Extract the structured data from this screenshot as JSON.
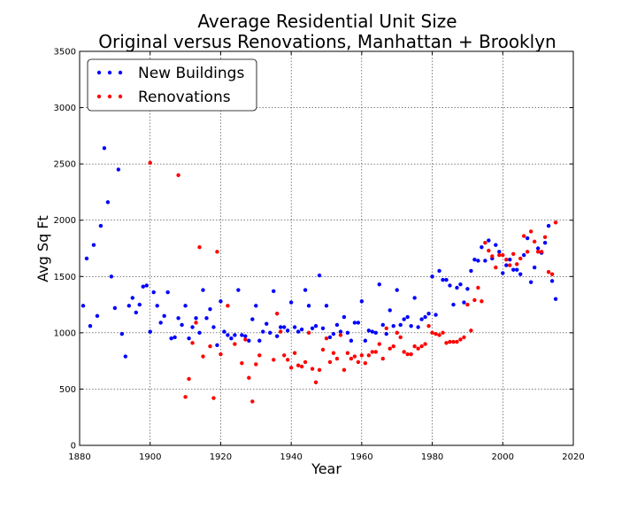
{
  "chart_data": {
    "type": "scatter",
    "title": "Average Residential Unit Size",
    "subtitle": "Original versus Renovations, Manhattan + Brooklyn",
    "xlabel": "Year",
    "ylabel": "Avg Sq Ft",
    "xlim": [
      1880,
      2020
    ],
    "ylim": [
      0,
      3500
    ],
    "xticks": [
      "1880",
      "1900",
      "1920",
      "1940",
      "1960",
      "1980",
      "2000",
      "2020"
    ],
    "yticks": [
      "0",
      "500",
      "1000",
      "1500",
      "2000",
      "2500",
      "3000",
      "3500"
    ],
    "grid": true,
    "legend_position": "top-left",
    "series": [
      {
        "name": "New Buildings",
        "color": "#0000ff",
        "points": [
          [
            1881,
            1240
          ],
          [
            1882,
            1660
          ],
          [
            1883,
            1060
          ],
          [
            1884,
            1780
          ],
          [
            1885,
            1150
          ],
          [
            1886,
            1950
          ],
          [
            1887,
            2640
          ],
          [
            1888,
            2160
          ],
          [
            1889,
            1500
          ],
          [
            1890,
            1220
          ],
          [
            1891,
            2450
          ],
          [
            1892,
            990
          ],
          [
            1893,
            790
          ],
          [
            1894,
            1240
          ],
          [
            1895,
            1310
          ],
          [
            1896,
            1180
          ],
          [
            1897,
            1250
          ],
          [
            1898,
            1410
          ],
          [
            1899,
            1420
          ],
          [
            1900,
            1010
          ],
          [
            1901,
            1360
          ],
          [
            1902,
            1240
          ],
          [
            1903,
            1090
          ],
          [
            1904,
            1150
          ],
          [
            1905,
            1360
          ],
          [
            1906,
            950
          ],
          [
            1907,
            960
          ],
          [
            1908,
            1130
          ],
          [
            1909,
            1070
          ],
          [
            1910,
            1240
          ],
          [
            1911,
            950
          ],
          [
            1912,
            1050
          ],
          [
            1913,
            1130
          ],
          [
            1914,
            1000
          ],
          [
            1915,
            1380
          ],
          [
            1916,
            1130
          ],
          [
            1917,
            1210
          ],
          [
            1918,
            1050
          ],
          [
            1919,
            890
          ],
          [
            1920,
            1280
          ],
          [
            1921,
            1010
          ],
          [
            1922,
            980
          ],
          [
            1923,
            950
          ],
          [
            1924,
            980
          ],
          [
            1925,
            1380
          ],
          [
            1926,
            980
          ],
          [
            1927,
            970
          ],
          [
            1928,
            930
          ],
          [
            1929,
            1120
          ],
          [
            1930,
            1240
          ],
          [
            1931,
            930
          ],
          [
            1932,
            1010
          ],
          [
            1933,
            1080
          ],
          [
            1934,
            1000
          ],
          [
            1935,
            1370
          ],
          [
            1936,
            970
          ],
          [
            1937,
            1050
          ],
          [
            1938,
            1050
          ],
          [
            1939,
            1020
          ],
          [
            1940,
            1270
          ],
          [
            1941,
            1050
          ],
          [
            1942,
            1010
          ],
          [
            1943,
            1030
          ],
          [
            1944,
            1380
          ],
          [
            1945,
            1240
          ],
          [
            1946,
            1040
          ],
          [
            1947,
            1060
          ],
          [
            1948,
            1510
          ],
          [
            1949,
            1040
          ],
          [
            1950,
            1240
          ],
          [
            1951,
            960
          ],
          [
            1952,
            990
          ],
          [
            1953,
            1070
          ],
          [
            1954,
            1010
          ],
          [
            1955,
            1140
          ],
          [
            1956,
            1000
          ],
          [
            1957,
            930
          ],
          [
            1958,
            1090
          ],
          [
            1959,
            1090
          ],
          [
            1960,
            1280
          ],
          [
            1961,
            930
          ],
          [
            1962,
            1020
          ],
          [
            1963,
            1010
          ],
          [
            1964,
            1000
          ],
          [
            1965,
            1430
          ],
          [
            1966,
            1070
          ],
          [
            1967,
            990
          ],
          [
            1968,
            1200
          ],
          [
            1969,
            1060
          ],
          [
            1970,
            1380
          ],
          [
            1971,
            1070
          ],
          [
            1972,
            1120
          ],
          [
            1973,
            1140
          ],
          [
            1974,
            1060
          ],
          [
            1975,
            1310
          ],
          [
            1976,
            1050
          ],
          [
            1977,
            1120
          ],
          [
            1978,
            1140
          ],
          [
            1979,
            1170
          ],
          [
            1980,
            1500
          ],
          [
            1981,
            1160
          ],
          [
            1982,
            1550
          ],
          [
            1983,
            1470
          ],
          [
            1984,
            1470
          ],
          [
            1985,
            1420
          ],
          [
            1986,
            1250
          ],
          [
            1987,
            1400
          ],
          [
            1988,
            1430
          ],
          [
            1989,
            1270
          ],
          [
            1990,
            1390
          ],
          [
            1991,
            1550
          ],
          [
            1992,
            1650
          ],
          [
            1993,
            1640
          ],
          [
            1994,
            1760
          ],
          [
            1995,
            1640
          ],
          [
            1996,
            1820
          ],
          [
            1997,
            1660
          ],
          [
            1998,
            1780
          ],
          [
            1999,
            1720
          ],
          [
            2000,
            1530
          ],
          [
            2001,
            1600
          ],
          [
            2002,
            1650
          ],
          [
            2003,
            1560
          ],
          [
            2004,
            1560
          ],
          [
            2005,
            1520
          ],
          [
            2006,
            1690
          ],
          [
            2007,
            1840
          ],
          [
            2008,
            1450
          ],
          [
            2009,
            1580
          ],
          [
            2010,
            1750
          ],
          [
            2011,
            1710
          ],
          [
            2012,
            1800
          ],
          [
            2013,
            1950
          ],
          [
            2014,
            1460
          ],
          [
            2015,
            1300
          ]
        ]
      },
      {
        "name": "Renovations",
        "color": "#ff0000",
        "points": [
          [
            1900,
            2510
          ],
          [
            1908,
            2400
          ],
          [
            1910,
            430
          ],
          [
            1911,
            590
          ],
          [
            1912,
            910
          ],
          [
            1913,
            1090
          ],
          [
            1914,
            1760
          ],
          [
            1915,
            790
          ],
          [
            1917,
            880
          ],
          [
            1918,
            420
          ],
          [
            1919,
            1720
          ],
          [
            1920,
            810
          ],
          [
            1922,
            1240
          ],
          [
            1924,
            900
          ],
          [
            1926,
            730
          ],
          [
            1927,
            940
          ],
          [
            1928,
            600
          ],
          [
            1929,
            390
          ],
          [
            1930,
            720
          ],
          [
            1931,
            800
          ],
          [
            1935,
            760
          ],
          [
            1936,
            1170
          ],
          [
            1937,
            1010
          ],
          [
            1938,
            800
          ],
          [
            1939,
            760
          ],
          [
            1940,
            690
          ],
          [
            1941,
            820
          ],
          [
            1942,
            710
          ],
          [
            1943,
            700
          ],
          [
            1944,
            740
          ],
          [
            1945,
            1000
          ],
          [
            1946,
            680
          ],
          [
            1947,
            560
          ],
          [
            1948,
            670
          ],
          [
            1949,
            850
          ],
          [
            1950,
            950
          ],
          [
            1951,
            740
          ],
          [
            1952,
            820
          ],
          [
            1953,
            770
          ],
          [
            1954,
            980
          ],
          [
            1955,
            670
          ],
          [
            1956,
            820
          ],
          [
            1957,
            770
          ],
          [
            1958,
            790
          ],
          [
            1959,
            740
          ],
          [
            1960,
            800
          ],
          [
            1961,
            730
          ],
          [
            1962,
            800
          ],
          [
            1963,
            830
          ],
          [
            1964,
            830
          ],
          [
            1965,
            900
          ],
          [
            1966,
            770
          ],
          [
            1967,
            1040
          ],
          [
            1968,
            860
          ],
          [
            1969,
            880
          ],
          [
            1970,
            1000
          ],
          [
            1971,
            960
          ],
          [
            1972,
            830
          ],
          [
            1973,
            810
          ],
          [
            1974,
            810
          ],
          [
            1975,
            880
          ],
          [
            1976,
            860
          ],
          [
            1977,
            880
          ],
          [
            1978,
            900
          ],
          [
            1979,
            1060
          ],
          [
            1980,
            1000
          ],
          [
            1981,
            990
          ],
          [
            1982,
            980
          ],
          [
            1983,
            1000
          ],
          [
            1984,
            910
          ],
          [
            1985,
            920
          ],
          [
            1986,
            920
          ],
          [
            1987,
            920
          ],
          [
            1988,
            940
          ],
          [
            1989,
            960
          ],
          [
            1990,
            1250
          ],
          [
            1991,
            1020
          ],
          [
            1992,
            1290
          ],
          [
            1993,
            1400
          ],
          [
            1994,
            1280
          ],
          [
            1995,
            1800
          ],
          [
            1996,
            1730
          ],
          [
            1997,
            1680
          ],
          [
            1998,
            1580
          ],
          [
            1999,
            1690
          ],
          [
            2000,
            1690
          ],
          [
            2001,
            1650
          ],
          [
            2002,
            1600
          ],
          [
            2003,
            1700
          ],
          [
            2004,
            1610
          ],
          [
            2005,
            1660
          ],
          [
            2006,
            1860
          ],
          [
            2007,
            1720
          ],
          [
            2008,
            1900
          ],
          [
            2009,
            1810
          ],
          [
            2010,
            1720
          ],
          [
            2011,
            1720
          ],
          [
            2012,
            1850
          ],
          [
            2013,
            1540
          ],
          [
            2014,
            1520
          ],
          [
            2015,
            1980
          ]
        ]
      }
    ]
  }
}
